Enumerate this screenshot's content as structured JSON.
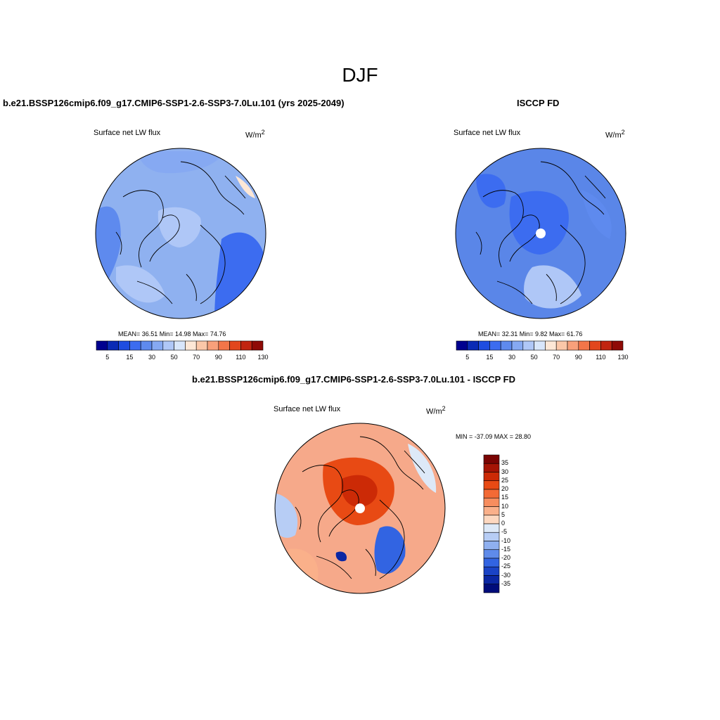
{
  "title": "DJF",
  "panels": [
    {
      "id": "model",
      "title": "b.e21.BSSP126cmip6.f09_g17.CMIP6-SSP1-2.6-SSP3-7.0Lu.101 (yrs 2025-2049)",
      "left_label": "Surface net LW flux",
      "units_base": "W/m",
      "units_exp": "2",
      "stats_text": "MEAN=  36.51  Min=  14.98  Max=  74.76",
      "base_color": "#8fb1f0",
      "colorbar_labels": [
        "5",
        "15",
        "30",
        "50",
        "70",
        "90",
        "110",
        "130"
      ]
    },
    {
      "id": "obs",
      "title": "ISCCP FD",
      "left_label": "Surface net LW flux",
      "units_base": "W/m",
      "units_exp": "2",
      "stats_text": "MEAN=  32.31  Min=   9.82  Max=  61.76",
      "base_color": "#5a86e8",
      "colorbar_labels": [
        "5",
        "15",
        "30",
        "50",
        "70",
        "90",
        "110",
        "130"
      ]
    },
    {
      "id": "diff",
      "title": "b.e21.BSSP126cmip6.f09_g17.CMIP6-SSP1-2.6-SSP3-7.0Lu.101 - ISCCP FD",
      "left_label": "Surface net LW flux",
      "units_base": "W/m",
      "units_exp": "2",
      "stats_text": "MIN = -37.09 MAX =  28.80",
      "base_color": "#f6a98a",
      "colorbar_labels": [
        "35",
        "30",
        "25",
        "20",
        "15",
        "10",
        "5",
        "0",
        "-5",
        "-10",
        "-15",
        "-20",
        "-25",
        "-30",
        "-35"
      ]
    }
  ],
  "seq_colors": [
    "#00008f",
    "#0a2ab5",
    "#1f4de0",
    "#3c6cf0",
    "#5e8aee",
    "#86a9f2",
    "#afc7f7",
    "#d8e6fb",
    "#fde7d6",
    "#fbc7a8",
    "#f8a07a",
    "#f27549",
    "#e2461d",
    "#c12410",
    "#8f0a06"
  ],
  "div_colors": [
    "#7a0403",
    "#a51405",
    "#cc2a06",
    "#e84a14",
    "#f36a35",
    "#f78d5e",
    "#fab08a",
    "#fdd8c0",
    "#dde9f8",
    "#b7cdf5",
    "#8fb0f0",
    "#5f8bea",
    "#3264e2",
    "#1a43c6",
    "#0b27a3",
    "#000c7a"
  ]
}
